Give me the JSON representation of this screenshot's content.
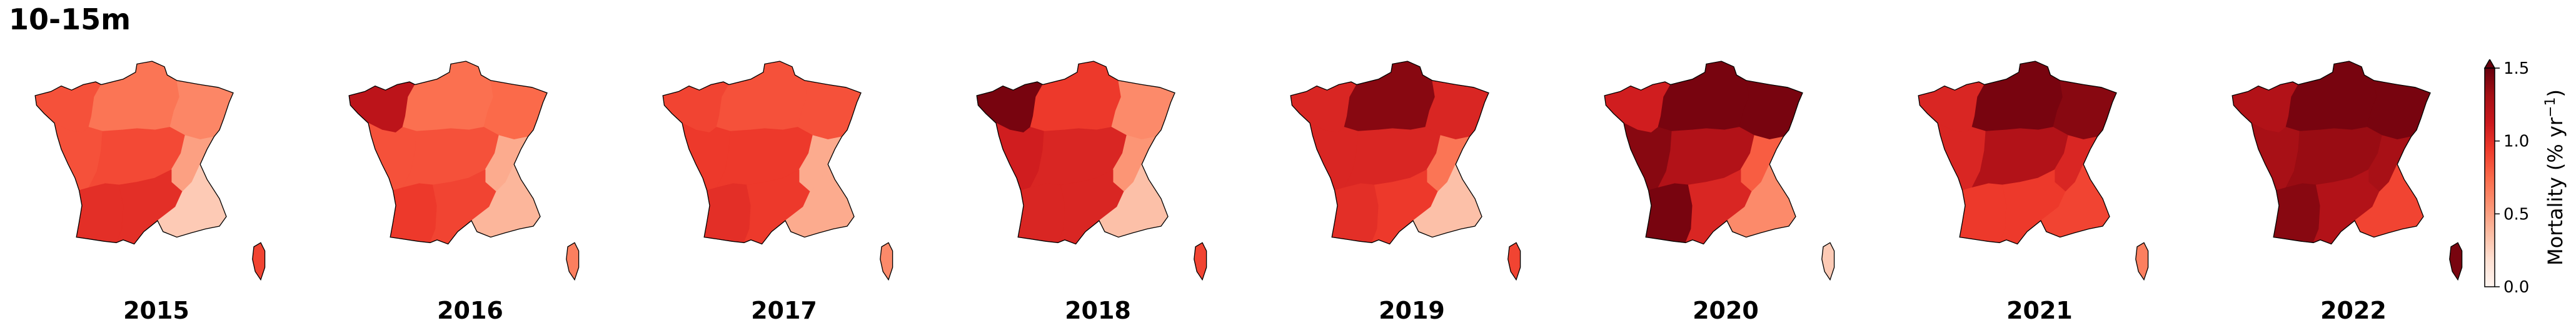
{
  "title": "10-15m",
  "colormap": {
    "name": "Reds",
    "stops": [
      "#fff5f0",
      "#fee0d2",
      "#fcbba1",
      "#fc9272",
      "#fb6a4a",
      "#ef3b2c",
      "#cb181d",
      "#a50f15",
      "#67000d"
    ],
    "vmin": 0.0,
    "vmax": 1.5,
    "extend": "max"
  },
  "colorbar": {
    "label_main": "Mortality (% yr",
    "label_sup": "−1",
    "label_close": ")",
    "ticks": [
      {
        "value": 0.0,
        "label": "0.0"
      },
      {
        "value": 0.5,
        "label": "0.5"
      },
      {
        "value": 1.0,
        "label": "1.0"
      },
      {
        "value": 1.5,
        "label": "1.5"
      }
    ]
  },
  "regions": [
    "NW",
    "N",
    "NE",
    "W",
    "C",
    "E",
    "SW",
    "S",
    "SE",
    "Corsica"
  ],
  "chart_data": {
    "type": "heatmap",
    "title": "10-15m",
    "years": [
      "2015",
      "2016",
      "2017",
      "2018",
      "2019",
      "2020",
      "2021",
      "2022"
    ],
    "values": {
      "2015": {
        "NW": 0.85,
        "N": 0.7,
        "NE": 0.62,
        "W": 0.85,
        "C": 0.88,
        "E": 0.5,
        "SW": 1.0,
        "S": 1.0,
        "SE": 0.3,
        "Corsica": 0.9
      },
      "2016": {
        "NW": 1.2,
        "N": 0.72,
        "NE": 0.75,
        "W": 0.85,
        "C": 0.85,
        "E": 0.45,
        "SW": 0.95,
        "S": 0.9,
        "SE": 0.4,
        "Corsica": 0.65
      },
      "2017": {
        "NW": 0.9,
        "N": 0.85,
        "NE": 0.85,
        "W": 0.95,
        "C": 0.95,
        "E": 0.45,
        "SW": 1.0,
        "S": 0.95,
        "SE": 0.45,
        "Corsica": 0.6
      },
      "2018": {
        "NW": 1.45,
        "N": 0.95,
        "NE": 0.6,
        "W": 1.1,
        "C": 1.05,
        "E": 0.55,
        "SW": 1.05,
        "S": 1.05,
        "SE": 0.35,
        "Corsica": 0.9
      },
      "2019": {
        "NW": 1.05,
        "N": 1.4,
        "NE": 1.05,
        "W": 1.05,
        "C": 1.05,
        "E": 0.7,
        "SW": 1.0,
        "S": 0.95,
        "SE": 0.35,
        "Corsica": 0.9
      },
      "2020": {
        "NW": 1.1,
        "N": 1.45,
        "NE": 1.45,
        "W": 1.4,
        "C": 1.25,
        "E": 0.8,
        "SW": 1.45,
        "S": 1.05,
        "SE": 0.6,
        "Corsica": 0.3
      },
      "2021": {
        "NW": 1.05,
        "N": 1.45,
        "NE": 1.4,
        "W": 1.05,
        "C": 1.25,
        "E": 1.05,
        "SW": 0.95,
        "S": 0.95,
        "SE": 0.9,
        "Corsica": 0.65
      },
      "2022": {
        "NW": 1.25,
        "N": 1.45,
        "NE": 1.45,
        "W": 1.3,
        "C": 1.35,
        "E": 1.3,
        "SW": 1.4,
        "S": 1.25,
        "SE": 0.9,
        "Corsica": 1.45
      }
    },
    "colorbar_range": [
      0.0,
      1.5
    ],
    "grid": false
  }
}
